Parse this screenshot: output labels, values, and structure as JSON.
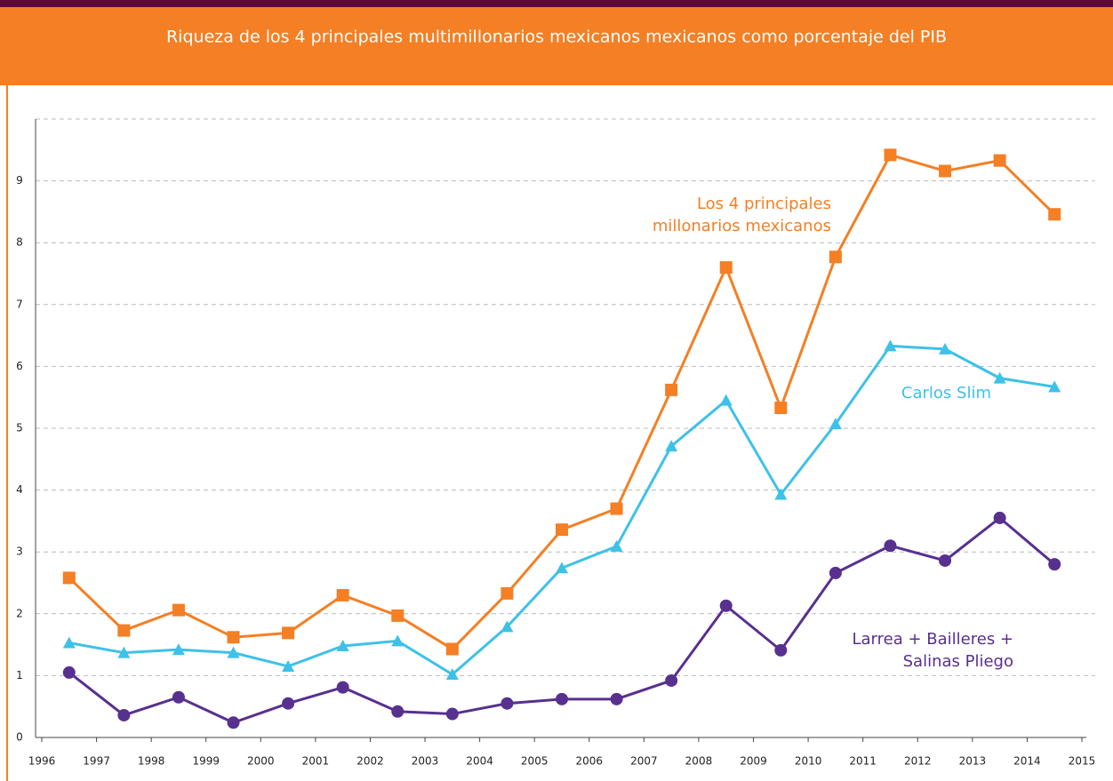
{
  "chart_data": {
    "type": "line",
    "title": "Riqueza de los 4 principales multimillonarios mexicanos mexicanos como porcentaje del PIB",
    "x": [
      1996.5,
      1997.5,
      1998.5,
      1999.5,
      2000.5,
      2001.5,
      2002.5,
      2003.5,
      2004.5,
      2005.5,
      2006.5,
      2007.5,
      2008.5,
      2009.5,
      2010.5,
      2011.5,
      2012.5,
      2013.5,
      2014.5
    ],
    "xlim": [
      1996,
      2015
    ],
    "xticks": [
      1996,
      1997,
      1998,
      1999,
      2000,
      2001,
      2002,
      2003,
      2004,
      2005,
      2006,
      2007,
      2008,
      2009,
      2010,
      2011,
      2012,
      2013,
      2014,
      2015
    ],
    "ylim": [
      0,
      10
    ],
    "yticks": [
      0,
      1,
      2,
      3,
      4,
      5,
      6,
      7,
      8,
      9
    ],
    "grid": true,
    "series": [
      {
        "label": [
          "Los 4 principales",
          "millonarios mexicanos"
        ],
        "color": "#f47f24",
        "marker": "square",
        "values": [
          2.58,
          1.73,
          2.06,
          1.62,
          1.69,
          2.3,
          1.97,
          1.43,
          2.33,
          3.36,
          3.7,
          5.62,
          7.6,
          5.33,
          7.77,
          9.42,
          9.16,
          9.33,
          8.46
        ]
      },
      {
        "label": [
          "Carlos Slim"
        ],
        "color": "#3ec1e8",
        "marker": "triangle",
        "values": [
          1.53,
          1.37,
          1.42,
          1.37,
          1.15,
          1.48,
          1.56,
          1.02,
          1.79,
          2.74,
          3.09,
          4.71,
          5.45,
          3.93,
          5.07,
          6.33,
          6.28,
          5.81,
          5.67
        ]
      },
      {
        "label": [
          "Larrea + Bailleres +",
          "Salinas Pliego"
        ],
        "color": "#58308f",
        "marker": "circle",
        "values": [
          1.05,
          0.36,
          0.65,
          0.24,
          0.55,
          0.81,
          0.42,
          0.38,
          0.55,
          0.62,
          0.62,
          0.92,
          2.13,
          1.41,
          2.66,
          3.1,
          2.86,
          3.55,
          2.8
        ]
      }
    ]
  }
}
